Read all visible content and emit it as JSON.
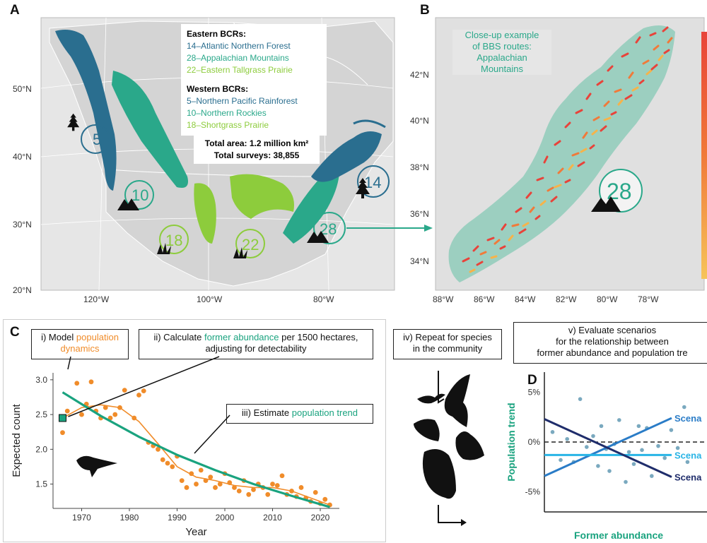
{
  "panels": {
    "a": "A",
    "b": "B",
    "c": "C",
    "d": "D"
  },
  "colors": {
    "dark_blue": "#2a6e8f",
    "teal": "#2aa88a",
    "light_green": "#8dcc3c",
    "orange": "#f08c2a",
    "trend_green": "#1aa37f",
    "navy": "#1f2d6b",
    "mid_blue": "#2a7cc7",
    "light_blue": "#28b4e6"
  },
  "map_a": {
    "eastern_title": "Eastern BCRs:",
    "eastern": [
      "14–Atlantic Northern Forest",
      "28–Appalachian Mountains",
      "22–Eastern Tallgrass Prairie"
    ],
    "western_title": "Western BCRs:",
    "western": [
      "5–Northern Pacific Rainforest",
      "10–Northern Rockies",
      "18–Shortgrass Prairie"
    ],
    "total_area": "Total area: 1.2 million km²",
    "total_surveys": "Total surveys: 38,855",
    "lat_labels": [
      "50°N",
      "40°N",
      "30°N",
      "20°N"
    ],
    "lon_labels": [
      "120°W",
      "100°W",
      "80°W"
    ],
    "region_numbers": [
      "5",
      "10",
      "18",
      "22",
      "28",
      "14"
    ]
  },
  "map_b": {
    "caption": [
      "Close-up example",
      "of BBS routes:",
      "Appalachian",
      "Mountains"
    ],
    "lat_labels": [
      "42°N",
      "40°N",
      "38°N",
      "36°N",
      "34°N"
    ],
    "lon_labels": [
      "88°W",
      "86°W",
      "84°W",
      "82°W",
      "80°W",
      "78°W"
    ],
    "region_number": "28"
  },
  "panel_c": {
    "step1_prefix": "i) Model ",
    "step1_highlight1": "population",
    "step1_highlight2": "dynamics",
    "step2_prefix": "ii) Calculate ",
    "step2_highlight": "former abundance",
    "step2_suffix1": " per 1500 hectares,",
    "step2_suffix2": "adjusting for detectability",
    "step3_prefix": "iii) Estimate ",
    "step3_highlight": "population trend",
    "step4_line1": "iv) Repeat for species",
    "step4_line2": "in the community",
    "step5_line1": "v) Evaluate scenarios",
    "step5_line2": "for the relationship between",
    "step5_line3": "former abundance and population tre"
  },
  "chart_data": [
    {
      "type": "scatter",
      "xlabel": "Year",
      "ylabel": "Expected count",
      "xlim": [
        1964,
        2024
      ],
      "ylim": [
        1.15,
        3.1
      ],
      "xticks": [
        "1970",
        "1980",
        "1990",
        "2000",
        "2010",
        "2020"
      ],
      "yticks": [
        "1.5",
        "2.0",
        "2.5",
        "3.0"
      ],
      "points_x": [
        1966,
        1967,
        1969,
        1970,
        1971,
        1972,
        1973,
        1974,
        1975,
        1976,
        1977,
        1978,
        1979,
        1981,
        1982,
        1983,
        1984,
        1985,
        1986,
        1987,
        1988,
        1989,
        1990,
        1991,
        1992,
        1993,
        1994,
        1995,
        1996,
        1997,
        1998,
        1999,
        2000,
        2001,
        2002,
        2003,
        2004,
        2005,
        2006,
        2007,
        2008,
        2009,
        2010,
        2011,
        2012,
        2013,
        2014,
        2015,
        2016,
        2017,
        2018,
        2019,
        2020,
        2021,
        2022
      ],
      "points_y": [
        2.24,
        2.55,
        2.95,
        2.5,
        2.65,
        2.97,
        2.55,
        2.45,
        2.6,
        2.45,
        2.5,
        2.6,
        2.85,
        2.45,
        2.78,
        2.84,
        2.1,
        2.05,
        2.0,
        1.85,
        1.8,
        1.75,
        1.9,
        1.55,
        1.45,
        1.65,
        1.5,
        1.7,
        1.55,
        1.6,
        1.45,
        1.5,
        1.65,
        1.52,
        1.45,
        1.4,
        1.55,
        1.35,
        1.42,
        1.5,
        1.45,
        1.35,
        1.5,
        1.48,
        1.62,
        1.35,
        1.4,
        1.32,
        1.45,
        1.3,
        1.25,
        1.38,
        1.22,
        1.28,
        1.2
      ],
      "smooth_x": [
        1966,
        1970,
        1974,
        1978,
        1982,
        1986,
        1990,
        1994,
        1998,
        2002,
        2006,
        2010,
        2014,
        2018,
        2022
      ],
      "smooth_y": [
        2.45,
        2.6,
        2.64,
        2.6,
        2.4,
        2.08,
        1.75,
        1.6,
        1.55,
        1.48,
        1.45,
        1.45,
        1.4,
        1.3,
        1.2
      ],
      "trend_x": [
        1966,
        1974,
        1982,
        1990,
        1998,
        2006,
        2014,
        2022
      ],
      "trend_y": [
        2.82,
        2.48,
        2.18,
        1.92,
        1.7,
        1.5,
        1.33,
        1.17
      ],
      "former_abundance_point": [
        1966,
        2.45
      ]
    },
    {
      "type": "scatter",
      "xlabel": "Former abundance",
      "ylabel": "Population trend",
      "yticks": [
        "5%",
        "0%",
        "-5%"
      ],
      "series": [
        {
          "name": "Scena",
          "color": "#2a7cc7",
          "y_start": -3.4,
          "y_end": 2.4
        },
        {
          "name": "Scena",
          "color": "#28b4e6",
          "y_start": -1.3,
          "y_end": -1.3
        },
        {
          "name": "Scena",
          "color": "#1f2d6b",
          "y_start": 2.3,
          "y_end": -3.5
        }
      ],
      "points_x": [
        0.05,
        0.1,
        0.14,
        0.18,
        0.22,
        0.26,
        0.3,
        0.33,
        0.35,
        0.38,
        0.4,
        0.43,
        0.46,
        0.5,
        0.52,
        0.55,
        0.58,
        0.6,
        0.63,
        0.66,
        0.7,
        0.74,
        0.78,
        0.82,
        0.86,
        0.88
      ],
      "points_y": [
        1.0,
        -1.8,
        0.3,
        -2.0,
        4.3,
        -0.5,
        0.6,
        -2.4,
        1.6,
        -0.7,
        -2.9,
        -0.2,
        2.2,
        -4.0,
        -1.0,
        -2.2,
        1.6,
        -0.8,
        1.4,
        -3.4,
        -0.4,
        -1.6,
        1.2,
        -0.6,
        3.5,
        -2.0
      ]
    }
  ]
}
